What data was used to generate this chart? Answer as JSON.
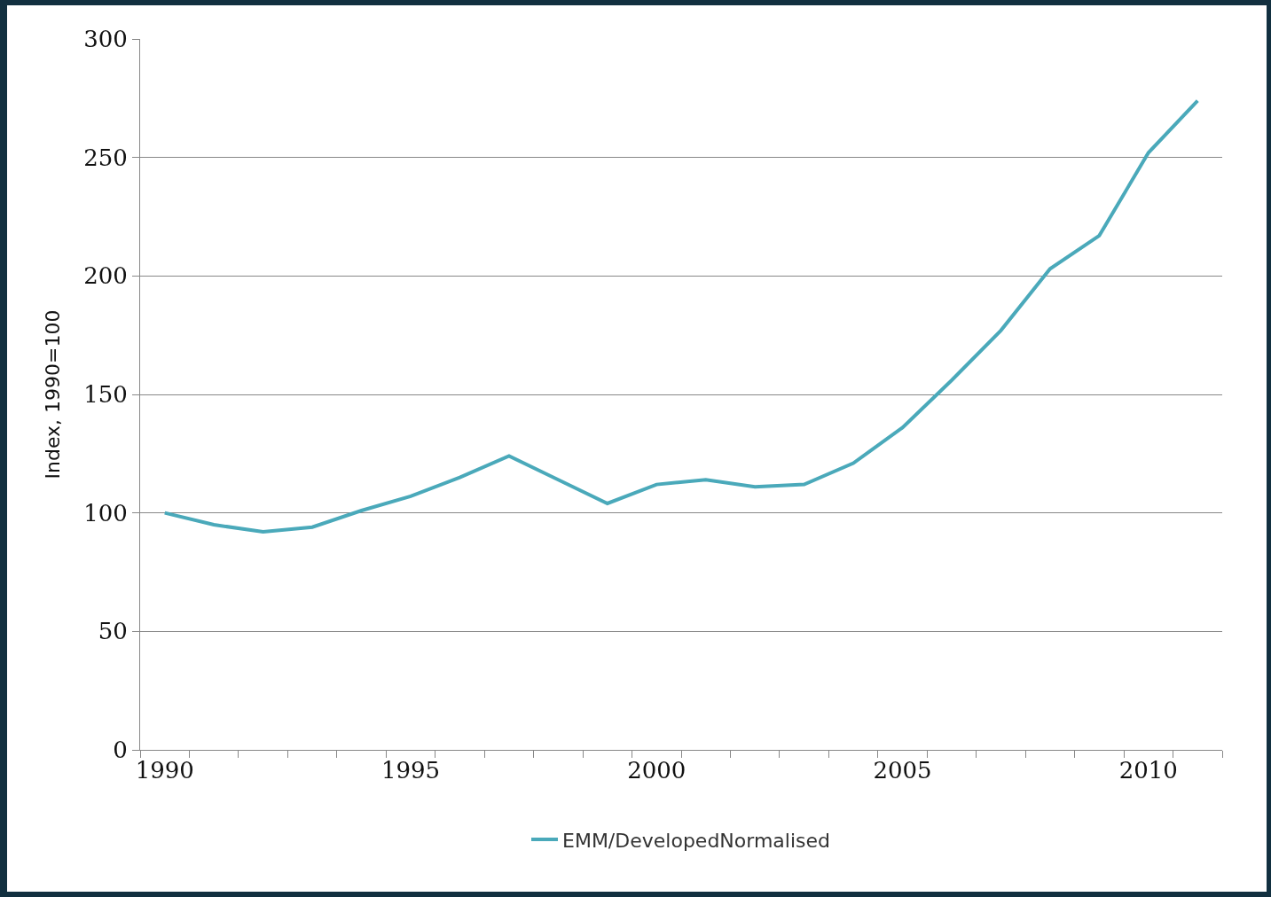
{
  "chart_data": {
    "type": "line",
    "ylabel": "Index, 1990=100",
    "categories": [
      "1990",
      null,
      null,
      null,
      null,
      "1995",
      null,
      null,
      null,
      null,
      "2000",
      null,
      null,
      null,
      null,
      "2005",
      null,
      null,
      null,
      null,
      "2010",
      null
    ],
    "series": [
      {
        "name": "EMM/DevelopedNormalised",
        "color": "#4aa9ba",
        "values": [
          100,
          95,
          92,
          94,
          101,
          107,
          115,
          124,
          114,
          104,
          112,
          114,
          111,
          112,
          121,
          136,
          156,
          177,
          203,
          217,
          252,
          274
        ]
      }
    ],
    "ylim": [
      0,
      300
    ],
    "yticks": [
      0,
      50,
      100,
      150,
      200,
      250,
      300
    ],
    "grid": "y",
    "legend": "bottom",
    "marker": "none",
    "line_style": "solid"
  }
}
